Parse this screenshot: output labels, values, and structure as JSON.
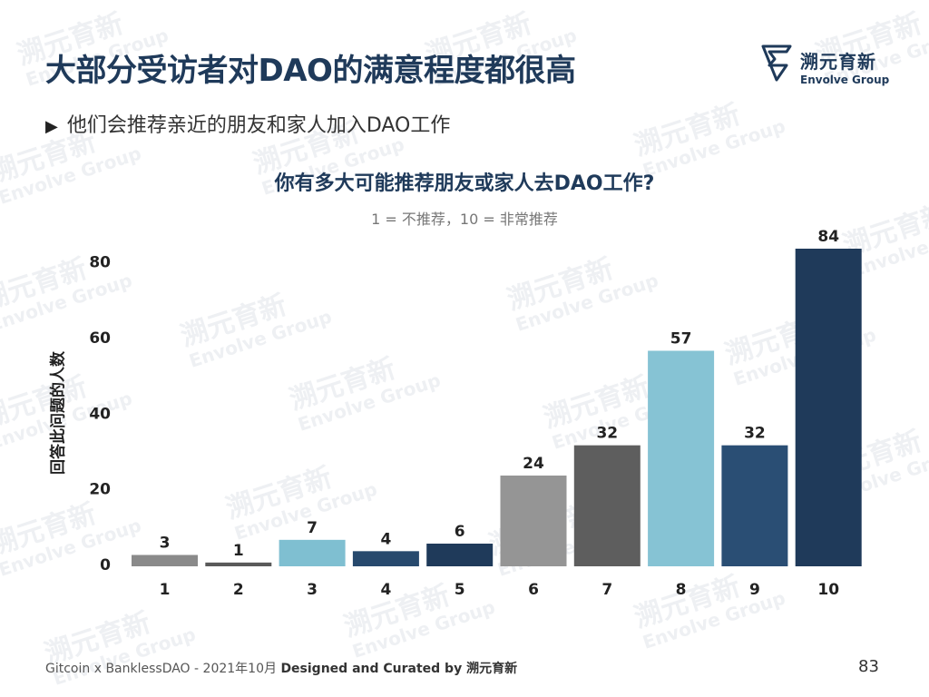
{
  "slide": {
    "title": "大部分受访者对DAO的满意程度都很高",
    "subtitle": "他们会推荐亲近的朋友和家人加入DAO工作",
    "logo": {
      "name_cn": "溯元育新",
      "name_en": "Envolve Group"
    },
    "watermark": {
      "cn": "溯元育新",
      "en": "Envolve Group"
    },
    "footer_source": "Gitcoin x BanklessDAO - 2021年10月",
    "footer_credit": "Designed and Curated by 溯元育新",
    "page_number": "83"
  },
  "chart_data": {
    "type": "bar",
    "title": "你有多大可能推荐朋友或家人去DAO工作?",
    "subtitle": "1 = 不推荐，10 = 非常推荐",
    "ylabel": "回答此问题的人数",
    "xlabel": "",
    "categories": [
      "1",
      "2",
      "3",
      "4",
      "5",
      "6",
      "7",
      "8",
      "9",
      "10"
    ],
    "values": [
      3,
      1,
      7,
      4,
      6,
      24,
      32,
      57,
      32,
      84
    ],
    "colors": [
      "#8a8a8a",
      "#5a5a5a",
      "#7fbfd1",
      "#27496d",
      "#1f3a5a",
      "#959595",
      "#5e5e5e",
      "#86c3d4",
      "#2a4e74",
      "#1f3a5a"
    ],
    "ylim": [
      0,
      84
    ],
    "yticks": [
      0,
      20,
      40,
      60,
      80
    ],
    "grid": false,
    "legend": "none"
  }
}
